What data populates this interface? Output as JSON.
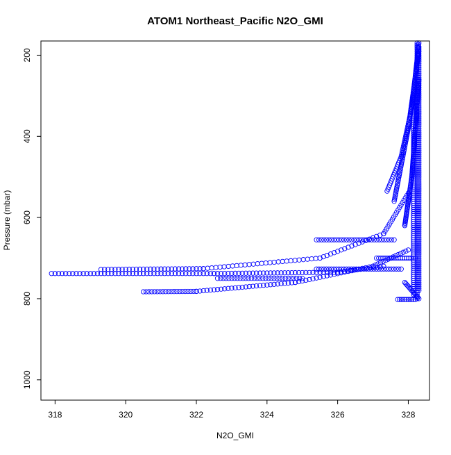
{
  "chart_data": {
    "type": "scatter",
    "title": "ATOM1 Northeast_Pacific N2O_GMI",
    "xlabel": "N2O_GMI",
    "ylabel": "Pressure (mbar)",
    "xlim": [
      317.6,
      328.6
    ],
    "ylim": [
      1050,
      165
    ],
    "y_axis_reversed": true,
    "x_ticks": [
      "318",
      "320",
      "322",
      "324",
      "326",
      "328"
    ],
    "y_ticks": [
      "200",
      "400",
      "600",
      "800",
      "1000"
    ],
    "marker": "open-circle",
    "marker_color": "#0000ff",
    "grid": false,
    "legend": "none",
    "segments": [
      {
        "from": [
          317.9,
          738
        ],
        "to": [
          322.5,
          738
        ],
        "step": 0.1
      },
      {
        "from": [
          322.5,
          738
        ],
        "to": [
          326.0,
          735
        ],
        "step": 0.1
      },
      {
        "from": [
          326.0,
          735
        ],
        "to": [
          327.3,
          720
        ],
        "step": 0.09
      },
      {
        "from": [
          319.3,
          728
        ],
        "to": [
          322.2,
          726
        ],
        "step": 0.1
      },
      {
        "from": [
          322.2,
          726
        ],
        "to": [
          325.5,
          700
        ],
        "step": 0.12
      },
      {
        "from": [
          325.5,
          700
        ],
        "to": [
          327.3,
          640
        ],
        "step": 0.1
      },
      {
        "from": [
          327.3,
          640
        ],
        "to": [
          328.0,
          540
        ],
        "step": 0.06
      },
      {
        "from": [
          320.5,
          783
        ],
        "to": [
          322.0,
          782
        ],
        "step": 0.08
      },
      {
        "from": [
          322.0,
          782
        ],
        "to": [
          324.8,
          760
        ],
        "step": 0.1
      },
      {
        "from": [
          324.8,
          760
        ],
        "to": [
          327.0,
          720
        ],
        "step": 0.1
      },
      {
        "from": [
          327.0,
          720
        ],
        "to": [
          328.0,
          680
        ],
        "step": 0.07
      },
      {
        "from": [
          322.6,
          750
        ],
        "to": [
          325.0,
          750
        ],
        "step": 0.08
      },
      {
        "from": [
          325.4,
          727
        ],
        "to": [
          327.8,
          727
        ],
        "step": 0.07
      },
      {
        "from": [
          327.1,
          700
        ],
        "to": [
          328.2,
          700
        ],
        "step": 0.06
      },
      {
        "from": [
          325.4,
          655
        ],
        "to": [
          327.6,
          655
        ],
        "step": 0.07
      },
      {
        "from": [
          327.7,
          802
        ],
        "to": [
          328.2,
          802
        ],
        "step": 0.05
      },
      {
        "from": [
          327.4,
          535
        ],
        "to": [
          327.8,
          450
        ],
        "step": 0.05
      },
      {
        "from": [
          327.8,
          450
        ],
        "to": [
          328.1,
          330
        ],
        "step": 0.05
      },
      {
        "from": [
          328.1,
          330
        ],
        "to": [
          328.3,
          170
        ],
        "step": 0.04
      },
      {
        "from": [
          327.6,
          560
        ],
        "to": [
          328.0,
          380
        ],
        "step": 0.04
      },
      {
        "from": [
          328.0,
          380
        ],
        "to": [
          328.3,
          190
        ],
        "step": 0.04
      },
      {
        "from": [
          327.9,
          620
        ],
        "to": [
          328.1,
          500
        ],
        "step": 0.03
      },
      {
        "from": [
          328.1,
          500
        ],
        "to": [
          328.3,
          260
        ],
        "step": 0.03
      },
      {
        "from": [
          328.25,
          800
        ],
        "to": [
          328.25,
          170
        ],
        "step": 0.05
      },
      {
        "from": [
          328.15,
          790
        ],
        "to": [
          328.15,
          300
        ],
        "step": 0.05
      },
      {
        "from": [
          328.3,
          780
        ],
        "to": [
          328.3,
          180
        ],
        "step": 0.05
      },
      {
        "from": [
          327.9,
          760
        ],
        "to": [
          328.3,
          800
        ],
        "step": 0.03
      }
    ]
  }
}
